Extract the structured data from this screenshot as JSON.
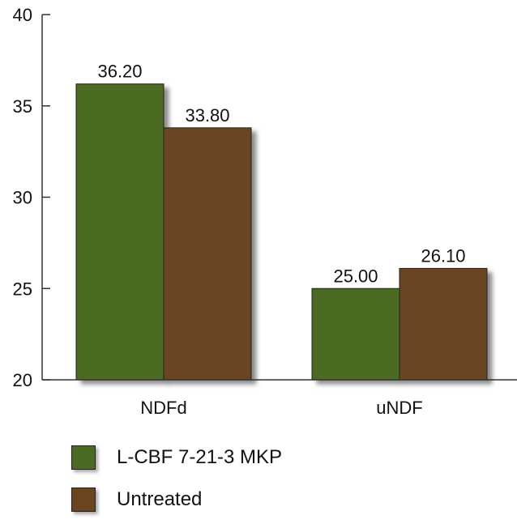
{
  "chart_data": {
    "type": "bar",
    "categories": [
      "NDFd",
      "uNDF"
    ],
    "series": [
      {
        "name": "L-CBF 7-21-3 MKP",
        "color": "#4b6b24",
        "values": [
          36.2,
          25.0
        ],
        "labels": [
          "36.20",
          "25.00"
        ]
      },
      {
        "name": "Untreated",
        "color": "#6b4420",
        "values": [
          33.8,
          26.1
        ],
        "labels": [
          "33.80",
          "26.10"
        ]
      }
    ],
    "ylim": [
      20,
      40
    ],
    "yticks": [
      20,
      25,
      30,
      35,
      40
    ],
    "title": "",
    "xlabel": "",
    "ylabel": "",
    "legend_position": "bottom-left",
    "grid": false
  }
}
